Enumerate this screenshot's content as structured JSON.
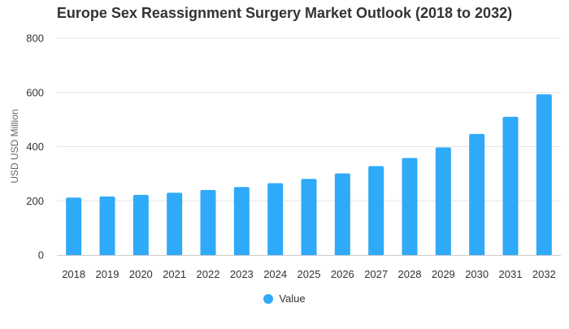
{
  "chart_data": {
    "type": "bar",
    "title": "Europe Sex Reassignment Surgery Market Outlook (2018 to 2032)",
    "xlabel": "",
    "ylabel": "USD USD Million",
    "ylim": [
      0,
      800
    ],
    "yticks": [
      0,
      200,
      400,
      600,
      800
    ],
    "grid": true,
    "legend_position": "bottom-center",
    "categories": [
      "2018",
      "2019",
      "2020",
      "2021",
      "2022",
      "2023",
      "2024",
      "2025",
      "2026",
      "2027",
      "2028",
      "2029",
      "2030",
      "2031",
      "2032"
    ],
    "series": [
      {
        "name": "Value",
        "color": "#2eaaf8",
        "values": [
          212,
          216,
          222,
          230,
          240,
          251,
          265,
          281,
          301,
          328,
          358,
          397,
          447,
          510,
          593
        ]
      }
    ]
  }
}
